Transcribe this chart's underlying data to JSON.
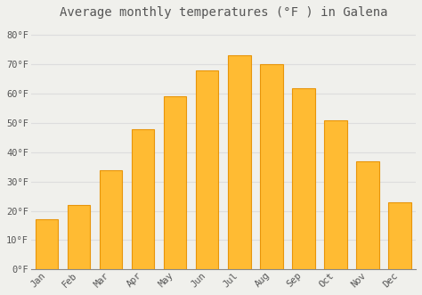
{
  "title": "Average monthly temperatures (°F ) in Galena",
  "months": [
    "Jan",
    "Feb",
    "Mar",
    "Apr",
    "May",
    "Jun",
    "Jul",
    "Aug",
    "Sep",
    "Oct",
    "Nov",
    "Dec"
  ],
  "values": [
    17,
    22,
    34,
    48,
    59,
    68,
    73,
    70,
    62,
    51,
    37,
    23
  ],
  "bar_color": "#FFBB33",
  "bar_edge_color": "#E8950A",
  "background_color": "#F0F0EC",
  "grid_color": "#DDDDDD",
  "text_color": "#555555",
  "spine_color": "#888888",
  "ylim": [
    0,
    84
  ],
  "yticks": [
    0,
    10,
    20,
    30,
    40,
    50,
    60,
    70,
    80
  ],
  "ytick_labels": [
    "0°F",
    "10°F",
    "20°F",
    "30°F",
    "40°F",
    "50°F",
    "60°F",
    "70°F",
    "80°F"
  ],
  "title_fontsize": 10,
  "tick_fontsize": 7.5,
  "bar_width": 0.7
}
